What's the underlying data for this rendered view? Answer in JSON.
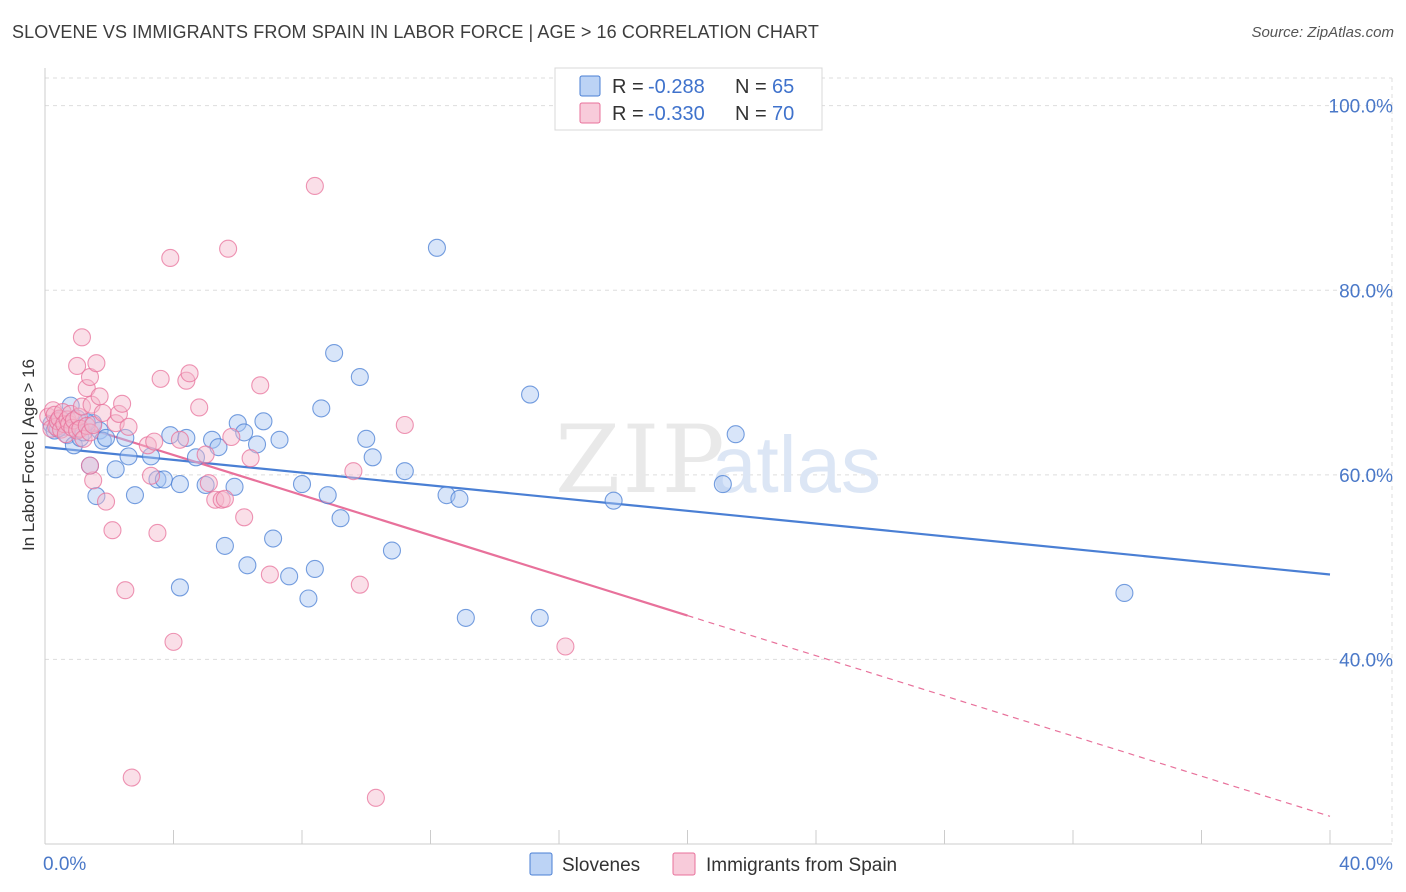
{
  "title": "SLOVENE VS IMMIGRANTS FROM SPAIN IN LABOR FORCE | AGE > 16 CORRELATION CHART",
  "source": "Source: ZipAtlas.com",
  "watermark": {
    "zip": "ZIP",
    "atlas": "atlas"
  },
  "colors": {
    "blue": "#4a7fd4",
    "blue_fill": "#a9c6f2",
    "pink": "#e8719b",
    "pink_fill": "#f5b8cd",
    "axis_text": "#4a78c8",
    "grid": "#dddddd"
  },
  "legend_top": [
    {
      "r_label": "R = ",
      "r_value": "-0.288",
      "n_label": "N = ",
      "n_value": "65"
    },
    {
      "r_label": "R = ",
      "r_value": "-0.330",
      "n_label": "N = ",
      "n_value": "70"
    }
  ],
  "legend_bottom": [
    "Slovenes",
    "Immigrants from Spain"
  ],
  "chart_data": {
    "type": "scatter",
    "title": "SLOVENE VS IMMIGRANTS FROM SPAIN IN LABOR FORCE | AGE > 16 CORRELATION CHART",
    "xlabel": "",
    "ylabel": "In Labor Force | Age > 16",
    "xlim": [
      0,
      40
    ],
    "ylim": [
      20,
      103
    ],
    "x_tick_labels": [
      "0.0%",
      "40.0%"
    ],
    "y_ticks": [
      40,
      60,
      80,
      100
    ],
    "y_tick_labels": [
      "40.0%",
      "60.0%",
      "80.0%",
      "100.0%"
    ],
    "grid": true,
    "legend_placement": "top-center",
    "series": [
      {
        "name": "Slovenes",
        "r": -0.288,
        "n": 65,
        "trend": {
          "x0": 0,
          "y0": 63.0,
          "x1": 40,
          "y1": 49.2,
          "dashed_from": null
        },
        "points": [
          [
            0.2,
            65.5
          ],
          [
            0.3,
            64.8
          ],
          [
            0.5,
            66.0
          ],
          [
            0.6,
            65.2
          ],
          [
            0.7,
            64.3
          ],
          [
            0.8,
            67.5
          ],
          [
            0.9,
            63.2
          ],
          [
            1.0,
            66.1
          ],
          [
            1.1,
            64.0
          ],
          [
            1.2,
            64.6
          ],
          [
            1.4,
            61.0
          ],
          [
            1.5,
            65.6
          ],
          [
            1.6,
            57.7
          ],
          [
            1.7,
            64.8
          ],
          [
            1.8,
            63.7
          ],
          [
            1.9,
            64.0
          ],
          [
            2.2,
            60.6
          ],
          [
            2.5,
            64.0
          ],
          [
            2.6,
            62.0
          ],
          [
            2.8,
            57.8
          ],
          [
            3.3,
            62.0
          ],
          [
            3.5,
            59.5
          ],
          [
            3.7,
            59.5
          ],
          [
            3.9,
            64.3
          ],
          [
            4.2,
            59.0
          ],
          [
            4.4,
            64.0
          ],
          [
            4.7,
            61.9
          ],
          [
            5.0,
            58.9
          ],
          [
            5.2,
            63.8
          ],
          [
            5.4,
            63.0
          ],
          [
            5.6,
            52.3
          ],
          [
            5.9,
            58.7
          ],
          [
            6.0,
            65.6
          ],
          [
            6.2,
            64.6
          ],
          [
            6.3,
            50.2
          ],
          [
            6.6,
            63.3
          ],
          [
            6.8,
            65.8
          ],
          [
            7.1,
            53.1
          ],
          [
            7.3,
            63.8
          ],
          [
            7.6,
            49.0
          ],
          [
            8.0,
            59.0
          ],
          [
            8.2,
            46.6
          ],
          [
            8.4,
            49.8
          ],
          [
            8.6,
            67.2
          ],
          [
            8.8,
            57.8
          ],
          [
            9.0,
            73.2
          ],
          [
            9.2,
            55.3
          ],
          [
            9.8,
            70.6
          ],
          [
            10.0,
            63.9
          ],
          [
            10.2,
            61.9
          ],
          [
            10.8,
            51.8
          ],
          [
            11.2,
            60.4
          ],
          [
            12.5,
            57.8
          ],
          [
            12.2,
            84.6
          ],
          [
            12.9,
            57.4
          ],
          [
            13.1,
            44.5
          ],
          [
            15.1,
            68.7
          ],
          [
            15.4,
            44.5
          ],
          [
            17.7,
            57.2
          ],
          [
            21.1,
            59.0
          ],
          [
            21.5,
            64.4
          ],
          [
            33.6,
            47.2
          ],
          [
            4.2,
            47.8
          ],
          [
            0.4,
            65.0
          ],
          [
            1.3,
            65.7
          ]
        ]
      },
      {
        "name": "Immigrants from Spain",
        "r": -0.33,
        "n": 70,
        "trend": {
          "x0": 0,
          "y0": 66.5,
          "x1": 40,
          "y1": 23.0,
          "dashed_from": 20
        },
        "points": [
          [
            0.1,
            66.3
          ],
          [
            0.2,
            65.0
          ],
          [
            0.25,
            67.0
          ],
          [
            0.3,
            66.5
          ],
          [
            0.35,
            65.2
          ],
          [
            0.4,
            65.8
          ],
          [
            0.45,
            66.1
          ],
          [
            0.5,
            64.9
          ],
          [
            0.55,
            66.8
          ],
          [
            0.6,
            65.5
          ],
          [
            0.65,
            64.4
          ],
          [
            0.7,
            66.0
          ],
          [
            0.75,
            65.5
          ],
          [
            0.8,
            66.6
          ],
          [
            0.85,
            65.1
          ],
          [
            0.9,
            65.9
          ],
          [
            1.0,
            64.8
          ],
          [
            1.05,
            66.3
          ],
          [
            1.1,
            65.0
          ],
          [
            1.15,
            67.4
          ],
          [
            1.2,
            63.9
          ],
          [
            1.3,
            65.3
          ],
          [
            1.4,
            64.6
          ],
          [
            1.5,
            65.4
          ],
          [
            1.0,
            71.8
          ],
          [
            1.15,
            74.9
          ],
          [
            1.3,
            69.4
          ],
          [
            1.4,
            70.6
          ],
          [
            1.45,
            67.6
          ],
          [
            1.6,
            72.1
          ],
          [
            1.7,
            68.5
          ],
          [
            1.8,
            66.7
          ],
          [
            1.5,
            59.4
          ],
          [
            1.4,
            61.0
          ],
          [
            1.9,
            57.1
          ],
          [
            2.1,
            54.0
          ],
          [
            2.2,
            65.6
          ],
          [
            2.3,
            66.6
          ],
          [
            2.4,
            67.7
          ],
          [
            2.6,
            65.2
          ],
          [
            2.5,
            47.5
          ],
          [
            2.7,
            27.2
          ],
          [
            3.2,
            63.2
          ],
          [
            3.3,
            59.9
          ],
          [
            3.4,
            63.6
          ],
          [
            3.5,
            53.7
          ],
          [
            3.6,
            70.4
          ],
          [
            3.9,
            83.5
          ],
          [
            4.0,
            41.9
          ],
          [
            4.2,
            63.8
          ],
          [
            4.4,
            70.2
          ],
          [
            4.5,
            71.0
          ],
          [
            4.8,
            67.3
          ],
          [
            5.0,
            62.2
          ],
          [
            5.1,
            59.1
          ],
          [
            5.3,
            57.3
          ],
          [
            5.5,
            57.3
          ],
          [
            5.6,
            57.4
          ],
          [
            5.7,
            84.5
          ],
          [
            5.8,
            64.1
          ],
          [
            6.2,
            55.4
          ],
          [
            6.4,
            61.8
          ],
          [
            6.7,
            69.7
          ],
          [
            7.0,
            49.2
          ],
          [
            8.4,
            91.3
          ],
          [
            9.6,
            60.4
          ],
          [
            9.8,
            48.1
          ],
          [
            10.3,
            25.0
          ],
          [
            11.2,
            65.4
          ],
          [
            16.2,
            41.4
          ]
        ]
      }
    ]
  }
}
